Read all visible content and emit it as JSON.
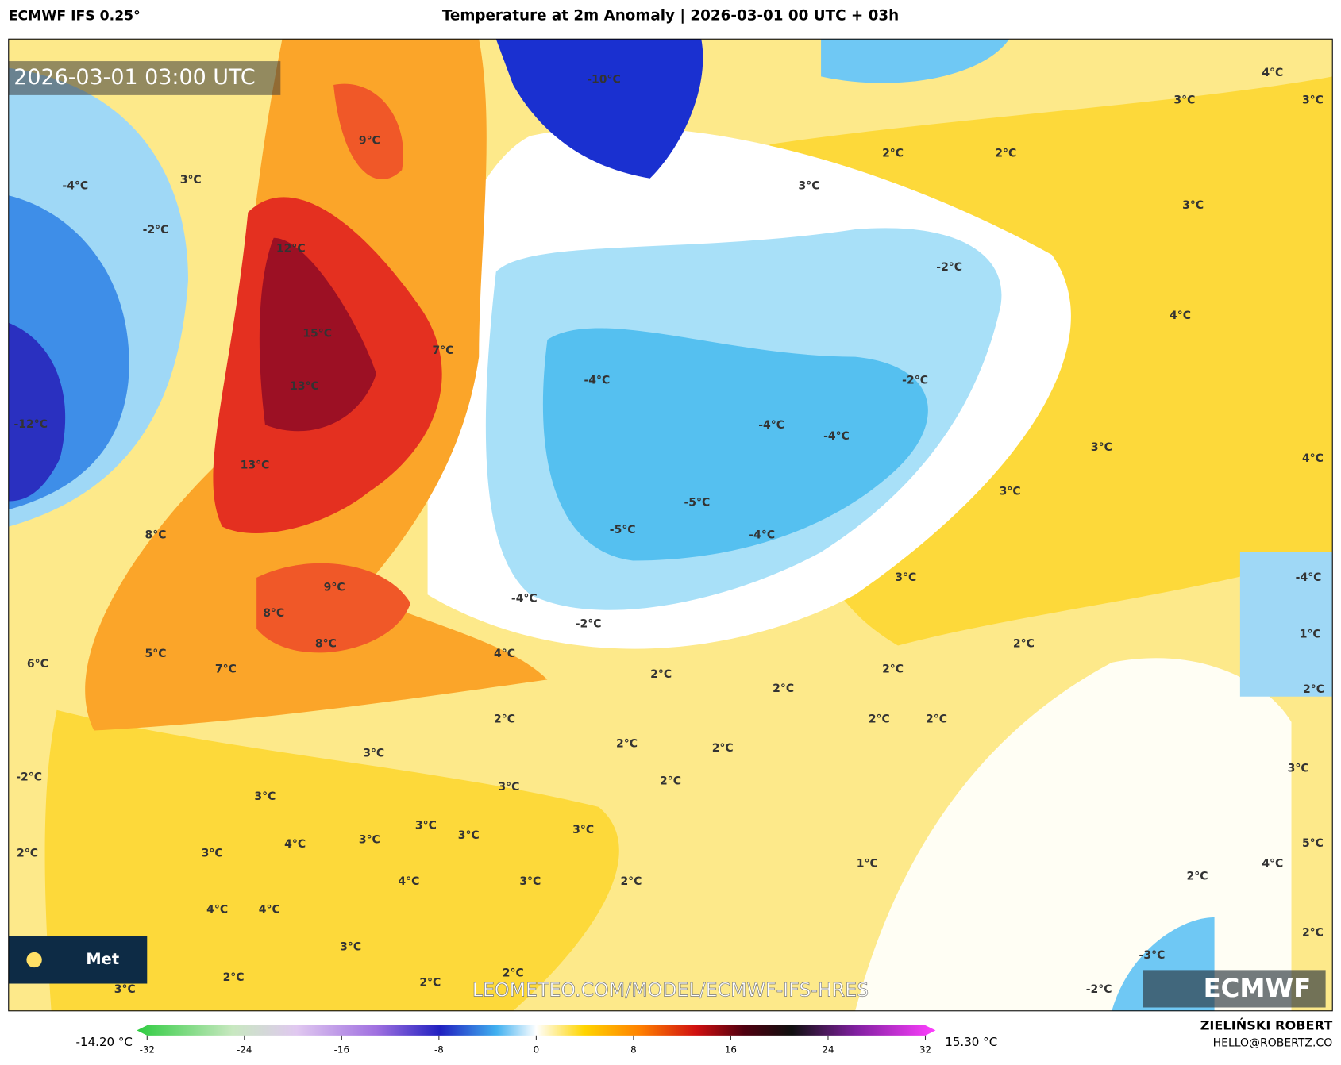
{
  "header": {
    "model": "ECMWF IFS 0.25°",
    "title": "Temperature at 2m Anomaly | 2026-03-01 00 UTC + 03h"
  },
  "map": {
    "timestamp": "2026-03-01 03:00 UTC",
    "watermark": "LEOMETEO.COM/MODEL/ECMWF-IFS-HRES",
    "logo": "ECMWF",
    "badge": "Met",
    "labels": [
      "-10°C",
      "9°C",
      "12°C",
      "15°C",
      "13°C",
      "7°C",
      "13°C",
      "8°C",
      "9°C",
      "8°C",
      "8°C",
      "7°C",
      "5°C",
      "6°C",
      "4°C",
      "-4°C",
      "-2°C",
      "-12°C",
      "3°C",
      "2°C",
      "2°C",
      "3°C",
      "3°C",
      "3°C",
      "4°C",
      "3°C",
      "4°C",
      "-2°C",
      "-4°C",
      "-2°C",
      "-4°C",
      "-4°C",
      "-5°C",
      "-5°C",
      "-4°C",
      "-4°C",
      "-2°C",
      "3°C",
      "3°C",
      "3°C",
      "2°C",
      "2°C",
      "2°C",
      "2°C",
      "2°C",
      "2°C",
      "2°C",
      "2°C",
      "2°C",
      "3°C",
      "2°C",
      "3°C",
      "3°C",
      "3°C",
      "3°C",
      "3°C",
      "3°C",
      "4°C",
      "3°C",
      "2°C",
      "1°C",
      "4°C",
      "3°C",
      "2°C",
      "4°C",
      "4°C",
      "3°C",
      "2°C",
      "2°C",
      "2°C",
      "3°C",
      "-2°C",
      "4°C",
      "5°C",
      "2°C",
      "-3°C",
      "-2°C",
      "-4°C",
      "1°C",
      "2°C",
      "3°C",
      "2°C",
      "4°C"
    ]
  },
  "colorbar": {
    "min_label": "-14.20 °C",
    "max_label": "15.30 °C",
    "ticks": [
      -32,
      -24,
      -16,
      -8,
      0,
      8,
      16,
      24,
      32
    ]
  },
  "credit": {
    "author": "ZIELIŃSKI ROBERT",
    "email": "HELLO@ROBERTZ.CO"
  }
}
